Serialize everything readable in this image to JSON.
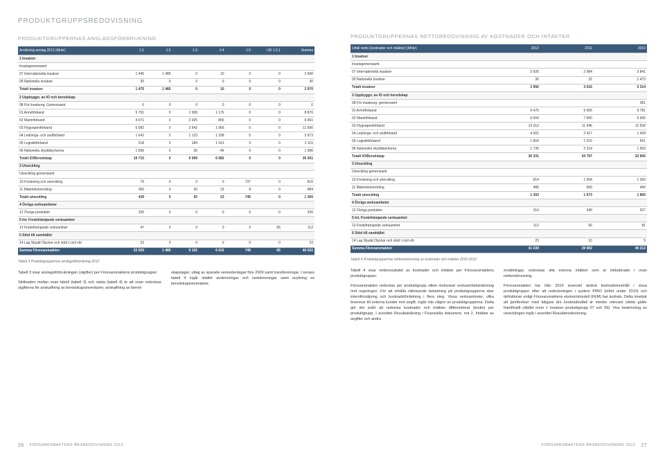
{
  "colors": {
    "header_bg": "#3a5a7a",
    "header_fg": "#ffffff",
    "border": "#c8c8c8",
    "muted": "#9aa0a6",
    "text": "#333333"
  },
  "left": {
    "page_title": "PRODUKTGRUPPSREDOVISNING",
    "section_title": "Produktgruppernas anslagsförbrukning",
    "headers": [
      "Avräkning anslag 2012 (Mnkr)",
      "1:1",
      "1:2",
      "1:3",
      "1:4",
      "1:5",
      "UD 1:2,1",
      "Summa"
    ],
    "rows": [
      {
        "t": "section",
        "c": [
          "1 Insatser",
          "",
          "",
          "",
          "",
          "",
          "",
          ""
        ]
      },
      {
        "c": [
          "Insatsgemensamt",
          "",
          "",
          "",
          "",
          "",
          "",
          ""
        ]
      },
      {
        "c": [
          "07 Internationella insatser",
          "1 445",
          "1 485",
          "0",
          "10",
          "0",
          "0",
          "2 940"
        ]
      },
      {
        "c": [
          "09 Nationella insatser",
          "30",
          "0",
          "0",
          "0",
          "0",
          "0",
          "30"
        ]
      },
      {
        "t": "total",
        "c": [
          "Totalt insatser",
          "1 475",
          "1 485",
          "0",
          "10",
          "0",
          "0",
          "2 970"
        ]
      },
      {
        "t": "section",
        "c": [
          "2 Uppbyggn. av IO och beredskap",
          "",
          "",
          "",
          "",
          "",
          "",
          ""
        ]
      },
      {
        "c": [
          "08 För Insatsorg. Gemensamt",
          "0",
          "0",
          "0",
          "0",
          "0",
          "0",
          "0"
        ]
      },
      {
        "c": [
          "01 Arméförband",
          "5 701",
          "0",
          "1 999",
          "1 176",
          "0",
          "0",
          "8 876"
        ]
      },
      {
        "c": [
          "02 Marinförband",
          "4 071",
          "0",
          "2 025",
          "865",
          "0",
          "0",
          "6 961"
        ]
      },
      {
        "c": [
          "03 Flygvapenförband",
          "6 082",
          "0",
          "3 642",
          "1 966",
          "0",
          "0",
          "11 690"
        ]
      },
      {
        "c": [
          "04 Lednings- och undförband",
          "1 642",
          "0",
          "1 123",
          "1 208",
          "0",
          "0",
          "3 973"
        ]
      },
      {
        "c": [
          "05 Logistikförband",
          "518",
          "0",
          "184",
          "1 413",
          "0",
          "0",
          "2 115"
        ]
      },
      {
        "c": [
          "06 Nationella skyddstyrkorna",
          "1 696",
          "0",
          "36",
          "-46",
          "0",
          "0",
          "1 686"
        ]
      },
      {
        "t": "total",
        "c": [
          "Totalt IO/Beredskap",
          "19 710",
          "0",
          "9 009",
          "6 582",
          "0",
          "0",
          "35 301"
        ]
      },
      {
        "t": "section",
        "c": [
          "3 Utveckling",
          "",
          "",
          "",
          "",
          "",
          "",
          ""
        ]
      },
      {
        "c": [
          "Utveckling gemensamt",
          "",
          "",
          "",
          "",
          "",
          "",
          ""
        ]
      },
      {
        "c": [
          "10 Forskning och utveckling",
          "79",
          "0",
          "0",
          "0",
          "737",
          "0",
          "816"
        ]
      },
      {
        "c": [
          "11 Materielutveckling",
          "360",
          "0",
          "93",
          "23",
          "8",
          "0",
          "484"
        ]
      },
      {
        "t": "total",
        "c": [
          "Totalt utveckling",
          "439",
          "0",
          "93",
          "23",
          "745",
          "0",
          "1 300"
        ]
      },
      {
        "t": "section",
        "c": [
          "4 Övriga verksamheter",
          "",
          "",
          "",
          "",
          "",
          "",
          ""
        ]
      },
      {
        "c": [
          "12 Övriga produkter",
          "326",
          "0",
          "0",
          "0",
          "0",
          "0",
          "326"
        ]
      },
      {
        "t": "section",
        "c": [
          "5 Int. Fredsfrämjande verksamhet",
          "",
          "",
          "",
          "",
          "",
          "",
          ""
        ]
      },
      {
        "c": [
          "13 Fredsfrämjande verksamhet",
          "47",
          "0",
          "0",
          "0",
          "0",
          "65",
          "112"
        ]
      },
      {
        "t": "section",
        "c": [
          "6 Stöd till samhället",
          "",
          "",
          "",
          "",
          "",
          "",
          ""
        ]
      },
      {
        "c": [
          "14 Lag Skydd Olyckor och stöd t civil vht",
          "23",
          "0",
          "0",
          "0",
          "0",
          "0",
          "23"
        ]
      },
      {
        "t": "grand",
        "c": [
          "Summa Försvarsmakten",
          "22 020",
          "1 485",
          "9 102",
          "6 615",
          "745",
          "65",
          "40 032"
        ]
      }
    ],
    "caption": "Tabell 3 Produktgruppernas anslagsförbrukning 2012",
    "para1": "Tabell 3 visar anslagsförbrukningen (utgifter) per Försvarsmaktens produktgrupper.",
    "para2": "Skillnaden mellan ovan tabell (tabell 3) och nästa (tabell 4) är att ovan redovisas utgifterna för anskaffning av beredskapsinventarier, anskaffning av bered-",
    "para3": "skapslager, uttag av sparade semesterdagar före 2009 samt transfereringar. I senare tabell 4 ingår istället avskrivningar och nedskrivningar samt avyttring av beredskapsinventarier.",
    "footer_num": "26",
    "footer_text": "FÖRSVARSMAKTENS ÅRSREDOVISNING 2012"
  },
  "right": {
    "section_title": "Produktgruppernas nettoredovisning av kostnader och intäkter",
    "headers": [
      "Utfall netto (kostnader och intäkter) (Mnkr)",
      "2012",
      "2011",
      "2010"
    ],
    "rows": [
      {
        "t": "section",
        "c": [
          "1 Insatser",
          "",
          "",
          ""
        ]
      },
      {
        "c": [
          "Insatsgemensamt",
          "",
          "",
          ""
        ]
      },
      {
        "c": [
          "07 Internationella insatser",
          "2 926",
          "2 984",
          "3 841"
        ]
      },
      {
        "c": [
          "09 Nationella insatser",
          "30",
          "32",
          "1 473"
        ]
      },
      {
        "t": "total",
        "c": [
          "Totalt insatser",
          "2 956",
          "3 016",
          "5 314"
        ]
      },
      {
        "t": "section",
        "c": [
          "2 Uppbyggn. av IO och beredskap",
          "",
          "",
          ""
        ]
      },
      {
        "c": [
          "08 För insatsorg. gemensamt",
          "",
          "",
          "381"
        ]
      },
      {
        "c": [
          "01 Arméförband",
          "9 475",
          "9 605",
          "9 781"
        ]
      },
      {
        "c": [
          "02 Marinförband",
          "6 004",
          "7 600",
          "6 665"
        ]
      },
      {
        "c": [
          "03 Flygvapenförband",
          "13 312",
          "11 946",
          "12 530"
        ]
      },
      {
        "c": [
          "04 Lednings- och undförband",
          "4 001",
          "2 417",
          "1 428"
        ]
      },
      {
        "c": [
          "05 Logistikförband",
          "1 804",
          "1 015",
          "551"
        ]
      },
      {
        "c": [
          "06 Nationella skyddstyrkorna",
          "1 735",
          "2 214",
          "1 569"
        ]
      },
      {
        "t": "total",
        "c": [
          "Totalt IO/Beredskap",
          "36 331",
          "34 797",
          "32 905"
        ]
      },
      {
        "t": "section",
        "c": [
          "3 Utveckling",
          "",
          "",
          ""
        ]
      },
      {
        "c": [
          "Utveckling gemensamt",
          "",
          "",
          ""
        ]
      },
      {
        "c": [
          "10 Forskning och utveckling",
          "814",
          "1 004",
          "1 360"
        ]
      },
      {
        "c": [
          "11 Materielutveckling",
          "489",
          "669",
          "440"
        ]
      },
      {
        "t": "total",
        "c": [
          "Totalt utveckling",
          "1 303",
          "1 673",
          "1 800"
        ]
      },
      {
        "t": "section",
        "c": [
          "4 Övriga verksamheter",
          "",
          "",
          ""
        ]
      },
      {
        "c": [
          "12 Övriga produkter",
          "314",
          "340",
          "207"
        ]
      },
      {
        "t": "section",
        "c": [
          "5 Int. Fredsfrämjande verksamhet",
          "",
          "",
          ""
        ]
      },
      {
        "c": [
          "13 Fredsfrämjande verksamhet",
          "112",
          "66",
          "81"
        ]
      },
      {
        "t": "section",
        "c": [
          "6 Stöd till samhället",
          "",
          "",
          ""
        ]
      },
      {
        "c": [
          "14 Lag Skydd Olyckor och stöd t civil vht",
          "23",
          "10",
          "5"
        ]
      },
      {
        "t": "grand",
        "c": [
          "Summa Försvarsmakten",
          "41 039",
          "39 902",
          "40 312"
        ]
      }
    ],
    "caption": "Tabell 4 Produktgruppernas nettoredovisning av kostnader och intäkter 2010-2012",
    "para1": "Tabell 4 visar nettoresultatet av kostnader och intäkter per Försvarsmaktens produktgrupper.",
    "para2": "Försvarsmakten redovisar per produktgrupp vilket motsvarar verksamhetsindelning mot regeringen. För att erhålla rättvisande belastning på produktgrupperna sker internförsäljning och kostnadsfördelning i flera steg. Vissa verksamheter, vilka levererar till externa kunder mot avgift, ingår inte någon av produktgrupperna. Detta gör det svårt att redovisa kostnader och intäkter differentierat (brutto) per produktgrupp. I avsnittet Resultaträkning i Finansiella dokument, not 2. Intäkter av avgifter och andra",
    "para3": "ersättningar, redovisas alla externa intäkter som är inkluderade i ovan nettoredovisning.",
    "para4": "Försvarsmakten har från 2010 avsevärt ändrat kostnadsinnehåll i vissa produktgrupper efter att redovisningen i system PRIO (infört under 2010) och definitioner enligt Försvarsmaktens ekonomimodell (FEM) har ändrats. Detta innebär att jämförelser med tidigare års kostnadsutfall är mindre relevant (detta gäller framförallt utfallet inom 1 Insatser produktgrupp 07 och 09). Viss beskrivning av utvecklingen ingår i avsnittet Resultatredovisning.",
    "footer_num": "27",
    "footer_text": "FÖRSVARSMAKTENS ÅRSREDOVISNING 2012"
  }
}
